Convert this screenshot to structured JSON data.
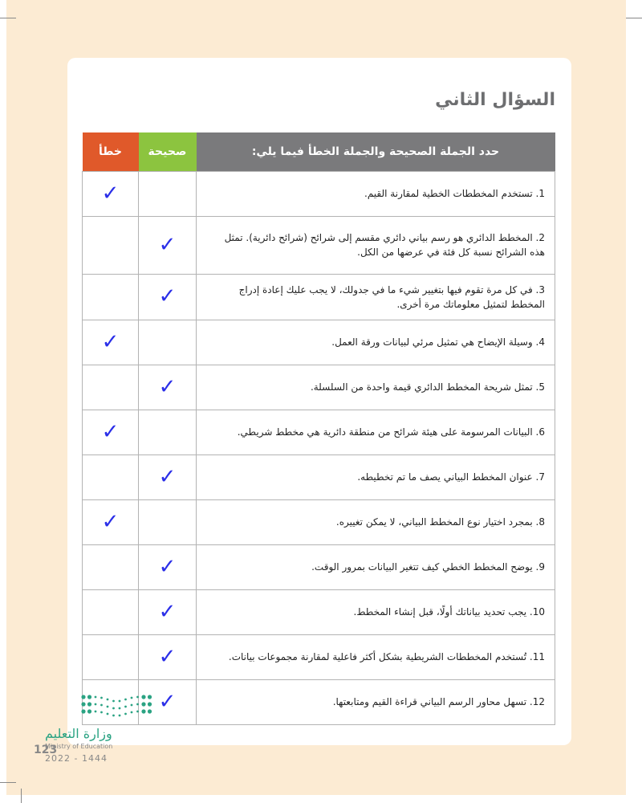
{
  "title": "السؤال الثاني",
  "table": {
    "header": {
      "question": "حدد الجملة الصحيحة والجملة الخطأ فيما يلي:",
      "true_label": "صحيحة",
      "false_label": "خطأ"
    },
    "check_mark": "✓",
    "rows": [
      {
        "text": "1. تستخدم المخططات الخطية لمقارنة القيم.",
        "answer": "false"
      },
      {
        "text": "2. المخطط الدائري هو رسم بياني دائري مقسم إلى شرائح (شرائح دائرية). تمثل هذه الشرائح نسبة كل فئة في عرضها من الكل.",
        "answer": "true"
      },
      {
        "text": "3. في كل مرة تقوم فيها بتغيير شيء ما في جدولك، لا يجب عليك إعادة إدراج المخطط لتمثيل معلوماتك مرة أخرى.",
        "answer": "true"
      },
      {
        "text": "4. وسيلة الإيضاح هي تمثيل مرئي لبيانات ورقة العمل.",
        "answer": "false"
      },
      {
        "text": "5. تمثل شريحة المخطط الدائري قيمة واحدة من السلسلة.",
        "answer": "true"
      },
      {
        "text": "6. البيانات المرسومة على هيئة شرائح من منطقة دائرية هي مخطط شريطي.",
        "answer": "false"
      },
      {
        "text": "7. عنوان المخطط البياني يصف ما تم تخطيطه.",
        "answer": "true"
      },
      {
        "text": "8. بمجرد اختيار نوع المخطط البياني، لا يمكن تغييره.",
        "answer": "false"
      },
      {
        "text": "9. يوضح المخطط الخطي كيف تتغير البيانات بمرور الوقت.",
        "answer": "true"
      },
      {
        "text": "10. يجب تحديد بياناتك أولًا، قبل إنشاء المخطط.",
        "answer": "true"
      },
      {
        "text": "11. تُستخدم المخططات الشريطية بشكل أكثر فاعلية لمقارنة مجموعات بيانات.",
        "answer": "true"
      },
      {
        "text": "12. تسهل محاور الرسم البياني قراءة القيم ومتابعتها.",
        "answer": "true"
      }
    ]
  },
  "footer": {
    "ministry_ar": "وزارة التعليم",
    "ministry_en": "Ministry of Education",
    "page_number": "123",
    "year": "2022 - 1444"
  },
  "colors": {
    "header": "#7a7a7c",
    "true": "#8cc43f",
    "false": "#e0592a",
    "check": "#2a2ee8",
    "background": "#fcebd3"
  }
}
